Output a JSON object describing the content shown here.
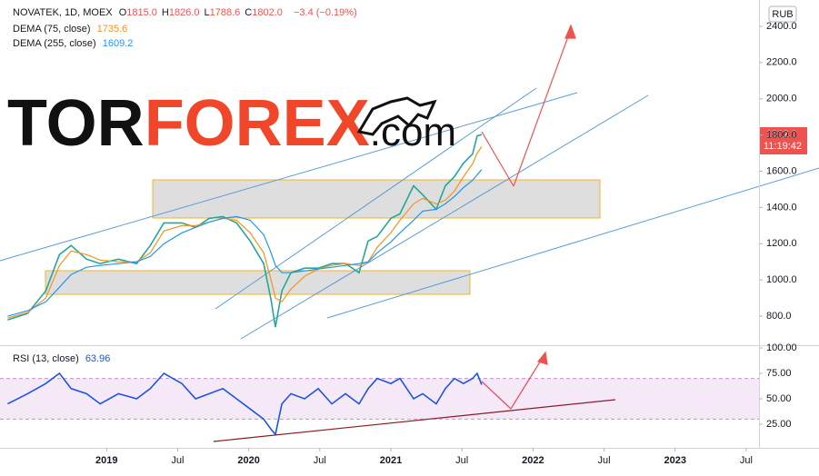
{
  "chart_data": [
    {
      "type": "line",
      "title": "NOVATEK, 1D, MOEX",
      "quote": [
        {
          "label": "O",
          "text": "1815.0"
        },
        {
          "label": "H",
          "text": "1826.0"
        },
        {
          "label": "L",
          "text": "1788.6"
        },
        {
          "label": "C",
          "text": "1802.0"
        }
      ],
      "change": "−3.4 (−0.19%)",
      "currency": "RUB",
      "countdown": "11:19:42",
      "watermark": [
        "TOR",
        "FOREX",
        ".com"
      ],
      "x": [
        2018.304,
        2018.444,
        2018.572,
        2018.668,
        2018.751,
        2018.859,
        2018.955,
        2019.083,
        2019.211,
        2019.307,
        2019.403,
        2019.53,
        2019.626,
        2019.722,
        2019.818,
        2019.914,
        2020.01,
        2020.105,
        2020.157,
        2020.188,
        2020.233,
        2020.297,
        2020.393,
        2020.489,
        2020.585,
        2020.681,
        2020.776,
        2020.84,
        2020.904,
        2021.0,
        2021.064,
        2021.16,
        2021.224,
        2021.319,
        2021.383,
        2021.447,
        2021.511,
        2021.575,
        2021.607,
        2021.639
      ],
      "series": [
        {
          "name": "NOVATEK, 1D, MOEX",
          "color": "#26a69a",
          "values": [
            780,
            815,
            940,
            1140,
            1190,
            1115,
            1090,
            1115,
            1090,
            1190,
            1315,
            1315,
            1290,
            1340,
            1350,
            1315,
            1215,
            1090,
            890,
            740,
            940,
            1040,
            1065,
            1065,
            1090,
            1090,
            1040,
            1215,
            1240,
            1340,
            1365,
            1520,
            1470,
            1390,
            1520,
            1570,
            1645,
            1695,
            1795,
            1802
          ]
        },
        {
          "name": "DEMA (75, close)",
          "color": "#f7931a",
          "values": [
            790,
            820,
            900,
            1080,
            1160,
            1140,
            1110,
            1100,
            1100,
            1150,
            1270,
            1300,
            1300,
            1320,
            1340,
            1330,
            1260,
            1150,
            1000,
            900,
            880,
            950,
            1020,
            1060,
            1080,
            1090,
            1080,
            1100,
            1180,
            1260,
            1330,
            1420,
            1450,
            1420,
            1440,
            1490,
            1570,
            1640,
            1700,
            1735.6
          ]
        },
        {
          "name": "DEMA (255, close)",
          "color": "#2196f3",
          "values": [
            800,
            830,
            880,
            960,
            1030,
            1070,
            1080,
            1090,
            1100,
            1130,
            1200,
            1260,
            1290,
            1320,
            1340,
            1350,
            1330,
            1250,
            1150,
            1080,
            1040,
            1040,
            1050,
            1060,
            1070,
            1080,
            1090,
            1100,
            1150,
            1210,
            1260,
            1330,
            1380,
            1390,
            1420,
            1460,
            1510,
            1550,
            1580,
            1609.2
          ]
        }
      ],
      "xlim": [
        2018.25,
        2023.59
      ],
      "xticks": [
        2019,
        {
          "value": 2019.5,
          "label": "Jul"
        },
        2020,
        {
          "value": 2020.5,
          "label": "Jul"
        },
        2021,
        {
          "value": 2021.5,
          "label": "Jul"
        },
        2022,
        {
          "value": 2022.5,
          "label": "Jul"
        },
        2023,
        {
          "value": 2023.5,
          "label": "Jul"
        }
      ],
      "ylim": [
        640,
        2505
      ],
      "yticks": [
        {
          "value": 800,
          "label": "800.0"
        },
        {
          "value": 1000,
          "label": "1000.0"
        },
        {
          "value": 1200,
          "label": "1200.0"
        },
        {
          "value": 1400,
          "label": "1400.0"
        },
        {
          "value": 1600,
          "label": "1600.0"
        },
        {
          "value": 1800,
          "label": "1800.0"
        },
        {
          "value": 2000,
          "label": "2000.0"
        },
        {
          "value": 2200,
          "label": "2200.0"
        },
        {
          "value": 2400,
          "label": "2400.0"
        }
      ]
    },
    {
      "type": "line",
      "x": [
        2018.304,
        2018.444,
        2018.572,
        2018.668,
        2018.751,
        2018.859,
        2018.955,
        2019.083,
        2019.211,
        2019.307,
        2019.403,
        2019.53,
        2019.626,
        2019.722,
        2019.818,
        2019.914,
        2020.01,
        2020.105,
        2020.157,
        2020.188,
        2020.233,
        2020.297,
        2020.393,
        2020.489,
        2020.585,
        2020.681,
        2020.776,
        2020.84,
        2020.904,
        2021.0,
        2021.064,
        2021.16,
        2021.224,
        2021.319,
        2021.383,
        2021.447,
        2021.511,
        2021.575,
        2021.607,
        2021.639
      ],
      "series": [
        {
          "name": "RSI (13, close)",
          "color": "#1e53e5",
          "values": [
            45,
            55,
            65,
            75,
            60,
            55,
            45,
            55,
            50,
            60,
            75,
            65,
            50,
            55,
            60,
            50,
            40,
            30,
            20,
            15,
            45,
            55,
            50,
            60,
            45,
            55,
            45,
            60,
            70,
            65,
            70,
            50,
            55,
            45,
            60,
            70,
            65,
            70,
            75,
            63.96
          ]
        }
      ],
      "band": [
        30,
        70
      ],
      "xlim": [
        2018.25,
        2023.59
      ],
      "ylim": [
        2.7,
        100.9
      ],
      "yticks": [
        {
          "value": 25,
          "label": "25.00"
        },
        {
          "value": 50,
          "label": "50.00"
        },
        {
          "value": 75,
          "label": "75.00"
        },
        {
          "value": 100,
          "label": "100.00"
        }
      ]
    }
  ]
}
